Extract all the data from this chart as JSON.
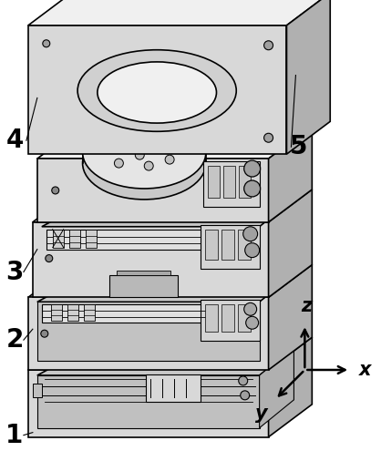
{
  "background_color": "#ffffff",
  "line_color": "#000000",
  "line_width": 1.2,
  "fill_light": "#f0f0f0",
  "fill_mid": "#d8d8d8",
  "fill_dark": "#b0b0b0",
  "fill_darker": "#909090",
  "label_1": "1",
  "label_2": "2",
  "label_3": "3",
  "label_4": "4",
  "label_5": "5",
  "label_x": "x",
  "label_y": "y",
  "label_z": "z",
  "label_fontsize": 20,
  "axis_label_fontsize": 15,
  "figwidth": 4.18,
  "figheight": 4.95,
  "dpi": 100
}
